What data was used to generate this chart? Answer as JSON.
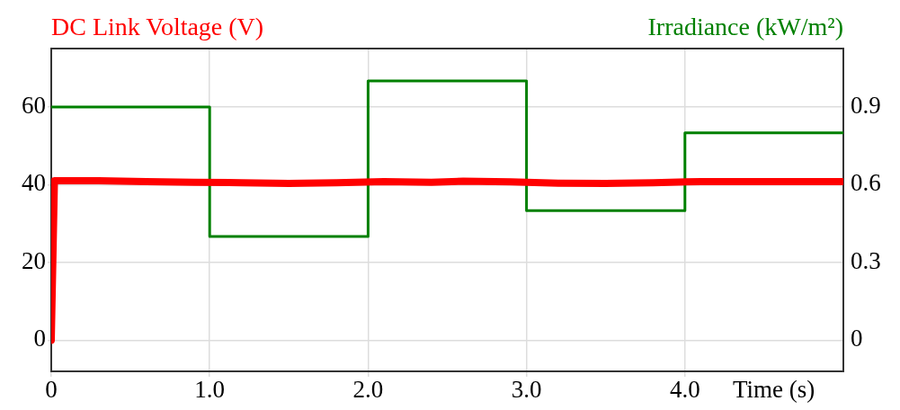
{
  "chart_data": {
    "type": "line",
    "xlabel": "Time (s)",
    "ylabel": "DC Link Voltage (V)",
    "y2label": "Irradiance (kW/m²)",
    "xlim": [
      0,
      5
    ],
    "xticks": [
      0,
      {
        "value": 1,
        "label": "1.0"
      },
      {
        "value": 2,
        "label": "2.0"
      },
      {
        "value": 3,
        "label": "3.0"
      },
      {
        "value": 4,
        "label": "4.0"
      }
    ],
    "ylim": [
      -8,
      75
    ],
    "yticks": [
      0,
      20,
      40,
      60
    ],
    "y2lim": [
      -0.12,
      1.125
    ],
    "y2ticks": [
      0,
      0.3,
      0.6,
      0.9
    ],
    "grid": true,
    "legend": false,
    "marker": "none",
    "line_style": "solid",
    "series": [
      {
        "name": null,
        "color": "#ff0000",
        "x": [
          0,
          0.02,
          0.3,
          0.6,
          0.9,
          1.2,
          1.5,
          1.8,
          2.1,
          2.4,
          2.6,
          2.9,
          3.2,
          3.5,
          3.8,
          4.1,
          4.5,
          5
        ],
        "values": [
          0,
          41,
          41,
          40.8,
          40.6,
          40.5,
          40.3,
          40.5,
          40.8,
          40.6,
          40.9,
          40.7,
          40.4,
          40.3,
          40.5,
          40.8,
          40.8,
          40.8
        ]
      },
      {
        "name": null,
        "type": "step",
        "axis": "y2",
        "color": "#008000",
        "x": [
          0,
          1,
          2,
          3,
          4,
          5
        ],
        "values": [
          0.9,
          0.4,
          1.0,
          0.5,
          0.8,
          0.8
        ]
      }
    ]
  }
}
